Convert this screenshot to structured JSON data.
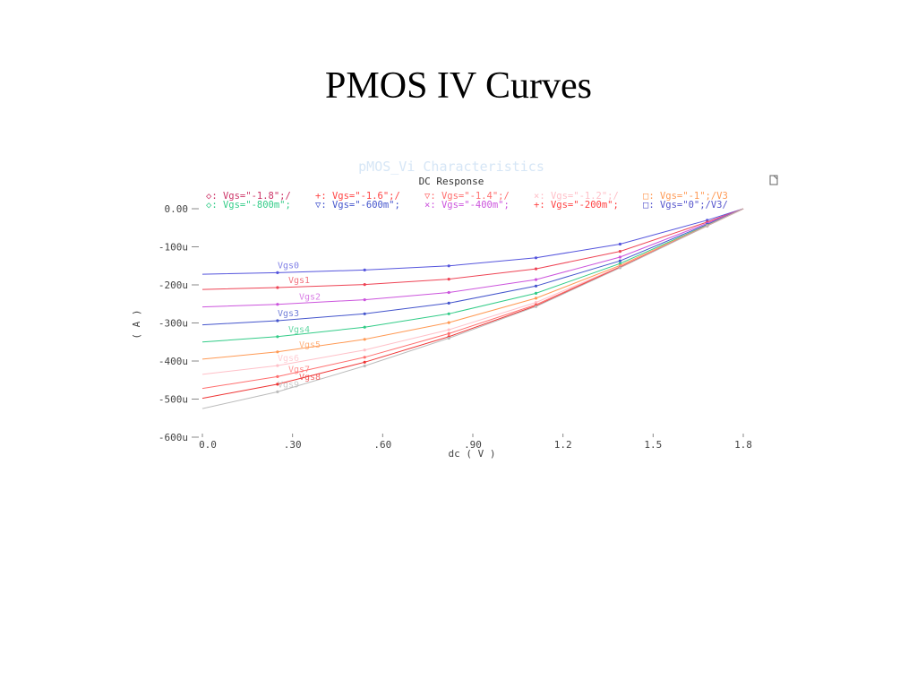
{
  "slide": {
    "title": "PMOS IV Curves"
  },
  "chart_data": {
    "type": "line",
    "title": "pMOS_Vi Characteristics",
    "subtitle": "DC Response",
    "xlabel": "dc ( V )",
    "ylabel": "( A )",
    "xlim": [
      0,
      1.8
    ],
    "ylim": [
      -0.0006,
      0
    ],
    "x_ticks": [
      {
        "v": 0,
        "label": "0.0"
      },
      {
        "v": 0.3,
        "label": ".30"
      },
      {
        "v": 0.6,
        "label": ".60"
      },
      {
        "v": 0.9,
        "label": ".90"
      },
      {
        "v": 1.2,
        "label": "1.2"
      },
      {
        "v": 1.5,
        "label": "1.5"
      },
      {
        "v": 1.8,
        "label": "1.8"
      }
    ],
    "y_ticks": [
      {
        "v": 0,
        "label": "0.00"
      },
      {
        "v": -0.0001,
        "label": "-100u"
      },
      {
        "v": -0.0002,
        "label": "-200u"
      },
      {
        "v": -0.0003,
        "label": "-300u"
      },
      {
        "v": -0.0004,
        "label": "-400u"
      },
      {
        "v": -0.0005,
        "label": "-500u"
      },
      {
        "v": -0.0006,
        "label": "-600u"
      }
    ],
    "legend": [
      {
        "marker": "◇:",
        "text": "Vgs=\"-1.8\";/",
        "color": "#cc3366"
      },
      {
        "marker": "+:",
        "text": "Vgs=\"-1.6\";/",
        "color": "#ff4444"
      },
      {
        "marker": "▽:",
        "text": "Vgs=\"-1.4\";/",
        "color": "#ff6f6f"
      },
      {
        "marker": "×:",
        "text": "Vgs=\"-1.2\";/",
        "color": "#ffc0c8"
      },
      {
        "marker": "□:",
        "text": "Vgs=\"-1\";/V3",
        "color": "#ff9a55"
      },
      {
        "marker": "◇:",
        "text": "Vgs=\"-800m\";",
        "color": "#33cc88"
      },
      {
        "marker": "▽:",
        "text": "Vgs=\"-600m\";",
        "color": "#4455cc"
      },
      {
        "marker": "×:",
        "text": "Vgs=\"-400m\";",
        "color": "#cc55dd"
      },
      {
        "marker": "+:",
        "text": "Vgs=\"-200m\";",
        "color": "#ff4444"
      },
      {
        "marker": "□:",
        "text": "Vgs=\"0\";/V3/",
        "color": "#5555cc"
      }
    ],
    "x": [
      0,
      0.25,
      0.54,
      0.82,
      1.11,
      1.39,
      1.68,
      1.8
    ],
    "series": [
      {
        "label": "Vgs0",
        "color": "#5555dd",
        "values": [
          -0.000172,
          -0.000168,
          -0.000161,
          -0.00015,
          -0.000129,
          -9.3e-05,
          -3e-05,
          0
        ]
      },
      {
        "label": "Vgs1",
        "color": "#ee4455",
        "values": [
          -0.000212,
          -0.000207,
          -0.000199,
          -0.000185,
          -0.000158,
          -0.000112,
          -3.5e-05,
          0
        ]
      },
      {
        "label": "Vgs2",
        "color": "#cc55dd",
        "values": [
          -0.000258,
          -0.000251,
          -0.000239,
          -0.00022,
          -0.000186,
          -0.000127,
          -3.8e-05,
          0
        ]
      },
      {
        "label": "Vgs3",
        "color": "#4455cc",
        "values": [
          -0.000305,
          -0.000294,
          -0.000276,
          -0.000248,
          -0.000203,
          -0.000137,
          -4.1e-05,
          0
        ]
      },
      {
        "label": "Vgs4",
        "color": "#33cc88",
        "values": [
          -0.00035,
          -0.000336,
          -0.000311,
          -0.000276,
          -0.000222,
          -0.000144,
          -4.3e-05,
          0
        ]
      },
      {
        "label": "Vgs5",
        "color": "#ff9a55",
        "values": [
          -0.000395,
          -0.000376,
          -0.000343,
          -0.000299,
          -0.000235,
          -0.000149,
          -4.4e-05,
          0
        ]
      },
      {
        "label": "Vgs6",
        "color": "#ffc0c8",
        "values": [
          -0.000435,
          -0.000412,
          -0.000371,
          -0.000318,
          -0.000246,
          -0.000152,
          -4.5e-05,
          0
        ]
      },
      {
        "label": "Vgs7",
        "color": "#ff6f6f",
        "values": [
          -0.000472,
          -0.000441,
          -0.00039,
          -0.000328,
          -0.000252,
          -0.000153,
          -4.5e-05,
          0
        ]
      },
      {
        "label": "Vgs8",
        "color": "#ee3333",
        "values": [
          -0.000498,
          -0.000461,
          -0.000403,
          -0.000336,
          -0.000255,
          -0.000154,
          -4.5e-05,
          0
        ]
      },
      {
        "label": "Vgs9",
        "color": "#bbbbbb",
        "values": [
          -0.000525,
          -0.000481,
          -0.000413,
          -0.00034,
          -0.000257,
          -0.000155,
          -4.5e-05,
          0
        ]
      }
    ],
    "corner_icon": "page-icon"
  }
}
